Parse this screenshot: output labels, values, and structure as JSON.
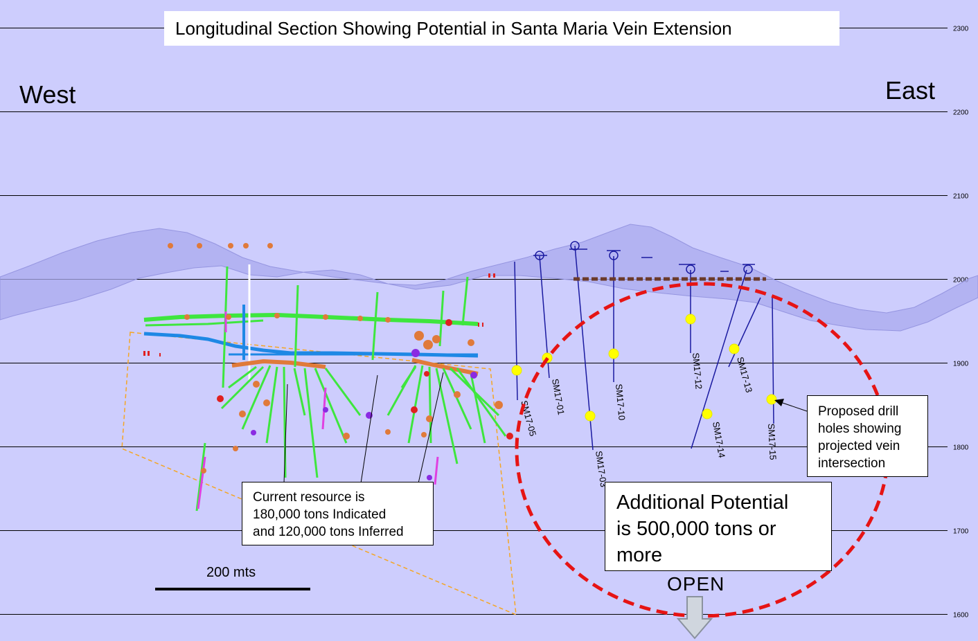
{
  "title": "Longitudinal Section Showing Potential in Santa Maria Vein Extension",
  "directions": {
    "west": "West",
    "east": "East"
  },
  "elevation_ticks": [
    "2300",
    "2200",
    "2100",
    "2000",
    "1900",
    "1800",
    "1700",
    "1600"
  ],
  "drill_holes": [
    "SM17-05",
    "SM17-01",
    "SM17-03",
    "SM17-10",
    "SM17-12",
    "SM17-14",
    "SM17-13",
    "SM17-15"
  ],
  "callouts": {
    "current_resource": [
      "Current resource is",
      "180,000 tons Indicated",
      "and 120,000 tons Inferred"
    ],
    "additional_potential": [
      "Additional Potential",
      "is 500,000 tons or",
      "more"
    ],
    "proposed_holes": [
      "Proposed drill",
      "holes showing",
      "projected vein",
      "intersection"
    ]
  },
  "scale_bar": {
    "label": "200 mts"
  },
  "open_label": "OPEN",
  "colors": {
    "background": "#cdcdfd",
    "terrain": "#a9a9ee",
    "potential_ellipse": "#e61414",
    "resource_outline": "#f5a623",
    "drill_green": "#3ee63e",
    "drift_blue": "#1e88e5",
    "proposed_hole": "#1a1aa0",
    "intersection": "#ffff00"
  }
}
